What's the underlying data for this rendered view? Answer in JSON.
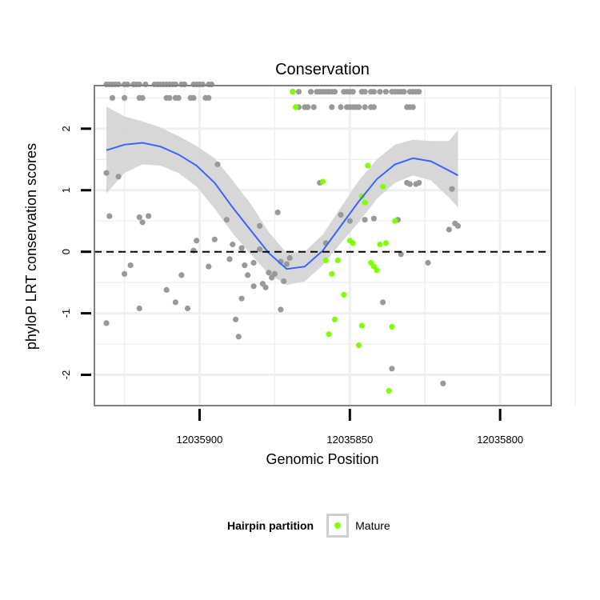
{
  "chart_data": {
    "type": "scatter",
    "title": "Conservation",
    "xlabel": "Genomic Position",
    "ylabel": "phyloP LRT conservation scores",
    "x_reversed": true,
    "xlim": [
      12035935,
      12035783
    ],
    "ylim": [
      -2.5,
      2.7
    ],
    "x_ticks": [
      12035900,
      12035850,
      12035800
    ],
    "x_tick_labels": [
      "12035900",
      "12035850",
      "12035800"
    ],
    "y_ticks": [
      -2,
      -1,
      0,
      1,
      2
    ],
    "y_tick_labels": [
      "-2",
      "-1",
      "0",
      "1",
      "2"
    ],
    "reference_line": {
      "y": 0,
      "style": "dashed"
    },
    "grid": true,
    "colors": {
      "other": "#999999",
      "mature": "#7fff00",
      "smooth_line": "#3366ff",
      "ribbon": "#d3d3d3",
      "panel_border": "#7f7f7f",
      "grid": "#f0f0f0"
    },
    "series": [
      {
        "name": "",
        "color": "#999999",
        "points": [
          [
            12035931,
            2.72
          ],
          [
            12035930,
            2.72
          ],
          [
            12035929,
            2.72
          ],
          [
            12035928,
            2.72
          ],
          [
            12035927,
            2.72
          ],
          [
            12035925,
            2.72
          ],
          [
            12035924,
            2.72
          ],
          [
            12035922,
            2.72
          ],
          [
            12035921,
            2.72
          ],
          [
            12035920,
            2.72
          ],
          [
            12035918,
            2.72
          ],
          [
            12035915,
            2.72
          ],
          [
            12035914,
            2.72
          ],
          [
            12035913,
            2.72
          ],
          [
            12035912,
            2.72
          ],
          [
            12035911,
            2.72
          ],
          [
            12035910,
            2.72
          ],
          [
            12035909,
            2.72
          ],
          [
            12035908,
            2.72
          ],
          [
            12035906,
            2.72
          ],
          [
            12035905,
            2.72
          ],
          [
            12035902,
            2.72
          ],
          [
            12035901,
            2.72
          ],
          [
            12035900,
            2.72
          ],
          [
            12035899,
            2.72
          ],
          [
            12035897,
            2.72
          ],
          [
            12035896,
            2.72
          ],
          [
            12035929,
            2.5
          ],
          [
            12035925,
            2.5
          ],
          [
            12035920,
            2.5
          ],
          [
            12035919,
            2.5
          ],
          [
            12035911,
            2.5
          ],
          [
            12035910,
            2.5
          ],
          [
            12035908,
            2.5
          ],
          [
            12035907,
            2.5
          ],
          [
            12035903,
            2.5
          ],
          [
            12035902,
            2.5
          ],
          [
            12035898,
            2.5
          ],
          [
            12035897,
            2.5
          ],
          [
            12035869,
            2.6
          ],
          [
            12035867,
            2.6
          ],
          [
            12035863,
            2.6
          ],
          [
            12035861,
            2.6
          ],
          [
            12035860,
            2.6
          ],
          [
            12035859,
            2.6
          ],
          [
            12035858,
            2.6
          ],
          [
            12035857,
            2.6
          ],
          [
            12035856,
            2.6
          ],
          [
            12035855,
            2.6
          ],
          [
            12035852,
            2.6
          ],
          [
            12035851,
            2.6
          ],
          [
            12035850,
            2.6
          ],
          [
            12035849,
            2.6
          ],
          [
            12035846,
            2.6
          ],
          [
            12035845,
            2.6
          ],
          [
            12035843,
            2.6
          ],
          [
            12035842,
            2.6
          ],
          [
            12035840,
            2.6
          ],
          [
            12035838,
            2.6
          ],
          [
            12035836,
            2.6
          ],
          [
            12035835,
            2.6
          ],
          [
            12035834,
            2.6
          ],
          [
            12035833,
            2.6
          ],
          [
            12035832,
            2.6
          ],
          [
            12035830,
            2.6
          ],
          [
            12035829,
            2.6
          ],
          [
            12035828,
            2.6
          ],
          [
            12035827,
            2.6
          ],
          [
            12035868,
            2.35
          ],
          [
            12035867,
            2.35
          ],
          [
            12035865,
            2.35
          ],
          [
            12035864,
            2.35
          ],
          [
            12035862,
            2.35
          ],
          [
            12035856,
            2.35
          ],
          [
            12035853,
            2.35
          ],
          [
            12035851,
            2.35
          ],
          [
            12035850,
            2.35
          ],
          [
            12035849,
            2.35
          ],
          [
            12035848,
            2.35
          ],
          [
            12035847,
            2.35
          ],
          [
            12035845,
            2.35
          ],
          [
            12035843,
            2.35
          ],
          [
            12035842,
            2.35
          ],
          [
            12035831,
            2.35
          ],
          [
            12035830,
            2.35
          ],
          [
            12035829,
            2.35
          ],
          [
            12035931,
            1.28
          ],
          [
            12035927,
            1.22
          ],
          [
            12035930,
            0.58
          ],
          [
            12035920,
            0.56
          ],
          [
            12035919,
            0.48
          ],
          [
            12035917,
            0.58
          ],
          [
            12035925,
            -0.36
          ],
          [
            12035923,
            -0.22
          ],
          [
            12035920,
            -0.92
          ],
          [
            12035931,
            -1.16
          ],
          [
            12035911,
            -0.62
          ],
          [
            12035908,
            -0.82
          ],
          [
            12035906,
            -0.38
          ],
          [
            12035904,
            -0.92
          ],
          [
            12035902,
            0.02
          ],
          [
            12035901,
            0.18
          ],
          [
            12035897,
            -0.24
          ],
          [
            12035895,
            0.2
          ],
          [
            12035894,
            1.42
          ],
          [
            12035891,
            0.52
          ],
          [
            12035889,
            0.12
          ],
          [
            12035890,
            -0.12
          ],
          [
            12035888,
            -1.1
          ],
          [
            12035887,
            -1.38
          ],
          [
            12035886,
            -0.76
          ],
          [
            12035886,
            0.06
          ],
          [
            12035885,
            -0.22
          ],
          [
            12035884,
            -0.38
          ],
          [
            12035882,
            -0.56
          ],
          [
            12035882,
            -0.18
          ],
          [
            12035880,
            0.42
          ],
          [
            12035880,
            0.04
          ],
          [
            12035879,
            -0.52
          ],
          [
            12035878,
            -0.58
          ],
          [
            12035877,
            -0.34
          ],
          [
            12035876,
            -0.42
          ],
          [
            12035875,
            -0.36
          ],
          [
            12035874,
            0.64
          ],
          [
            12035873,
            -0.16
          ],
          [
            12035873,
            -0.94
          ],
          [
            12035872,
            -0.48
          ],
          [
            12035871,
            -0.2
          ],
          [
            12035870,
            -0.1
          ],
          [
            12035860,
            1.12
          ],
          [
            12035858,
            0.14
          ],
          [
            12035853,
            0.6
          ],
          [
            12035850,
            0.5
          ],
          [
            12035845,
            0.52
          ],
          [
            12035842,
            0.54
          ],
          [
            12035839,
            -0.82
          ],
          [
            12035836,
            -1.9
          ],
          [
            12035834,
            0.52
          ],
          [
            12035833,
            -0.04
          ],
          [
            12035831,
            1.12
          ],
          [
            12035830,
            1.1
          ],
          [
            12035828,
            1.1
          ],
          [
            12035827,
            1.12
          ],
          [
            12035824,
            -0.18
          ],
          [
            12035819,
            -2.14
          ],
          [
            12035817,
            0.36
          ],
          [
            12035816,
            1.02
          ],
          [
            12035815,
            0.46
          ],
          [
            12035814,
            0.42
          ]
        ]
      },
      {
        "name": "Mature",
        "color": "#7fff00",
        "points": [
          [
            12035869,
            2.6
          ],
          [
            12035868,
            2.35
          ],
          [
            12035859,
            1.14
          ],
          [
            12035858,
            -0.14
          ],
          [
            12035857,
            -1.34
          ],
          [
            12035856,
            -0.36
          ],
          [
            12035855,
            -1.1
          ],
          [
            12035854,
            -0.14
          ],
          [
            12035852,
            -0.7
          ],
          [
            12035850,
            0.18
          ],
          [
            12035849,
            0.14
          ],
          [
            12035847,
            -1.52
          ],
          [
            12035846,
            -1.2
          ],
          [
            12035846,
            0.9
          ],
          [
            12035845,
            0.8
          ],
          [
            12035844,
            1.4
          ],
          [
            12035843,
            -0.18
          ],
          [
            12035842,
            -0.24
          ],
          [
            12035841,
            -0.3
          ],
          [
            12035840,
            0.12
          ],
          [
            12035839,
            1.06
          ],
          [
            12035838,
            0.14
          ],
          [
            12035837,
            -2.26
          ],
          [
            12035836,
            -1.22
          ],
          [
            12035835,
            0.5
          ]
        ]
      }
    ],
    "smooth": {
      "method": "loess",
      "x": [
        12035931,
        12035925,
        12035919,
        12035913,
        12035907,
        12035901,
        12035895,
        12035889,
        12035883,
        12035877,
        12035871,
        12035865,
        12035859,
        12035853,
        12035847,
        12035841,
        12035835,
        12035829,
        12035823,
        12035817,
        12035814
      ],
      "y": [
        1.65,
        1.74,
        1.77,
        1.71,
        1.58,
        1.4,
        1.12,
        0.72,
        0.35,
        -0.02,
        -0.28,
        -0.24,
        0.02,
        0.42,
        0.82,
        1.18,
        1.42,
        1.52,
        1.47,
        1.32,
        1.24
      ],
      "ymin": [
        0.95,
        1.28,
        1.42,
        1.4,
        1.28,
        1.06,
        0.7,
        0.3,
        -0.04,
        -0.36,
        -0.54,
        -0.48,
        -0.22,
        0.14,
        0.48,
        0.86,
        1.12,
        1.24,
        1.16,
        0.88,
        0.72
      ],
      "ymax": [
        2.36,
        2.2,
        2.12,
        2.02,
        1.88,
        1.72,
        1.52,
        1.16,
        0.78,
        0.32,
        -0.02,
        0.0,
        0.28,
        0.72,
        1.16,
        1.5,
        1.74,
        1.82,
        1.8,
        1.8,
        1.98
      ]
    },
    "legend": {
      "title": "Hairpin partition",
      "label": "Mature",
      "position": "bottom"
    }
  }
}
